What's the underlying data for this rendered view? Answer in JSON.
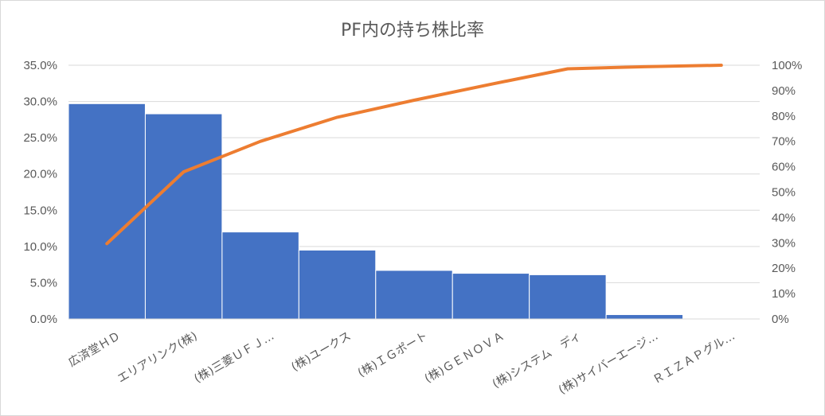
{
  "chart_data": {
    "type": "bar",
    "title": "PF内の持ち株比率",
    "categories": [
      "広済堂ＨＤ",
      "エリアリンク(株)",
      "(株)三菱ＵＦＪ…",
      "(株)ユークス",
      "(株)ＩＧポート",
      "(株)ＧＥＮＯＶＡ",
      "(株)システム　ディ",
      "(株)サイバーエージ…",
      "ＲＩＺＡＰグル…"
    ],
    "series": [
      {
        "values": [
          29.7,
          28.3,
          12.0,
          9.5,
          6.7,
          6.3,
          6.1,
          0.6,
          0.0
        ],
        "color": "#4472c4"
      },
      {
        "values": [
          29.7,
          58.0,
          70.0,
          79.5,
          86.2,
          92.5,
          98.6,
          99.4,
          100.0
        ],
        "color": "#ed7d31"
      }
    ],
    "y_left": {
      "ylim": [
        0,
        35
      ],
      "ticks": [
        "0.0%",
        "5.0%",
        "10.0%",
        "15.0%",
        "20.0%",
        "25.0%",
        "30.0%",
        "35.0%"
      ]
    },
    "y_right": {
      "ylim": [
        0,
        100
      ],
      "ticks": [
        "0%",
        "10%",
        "20%",
        "30%",
        "40%",
        "50%",
        "60%",
        "70%",
        "80%",
        "90%",
        "100%"
      ]
    },
    "grid": true,
    "legend": "none"
  }
}
